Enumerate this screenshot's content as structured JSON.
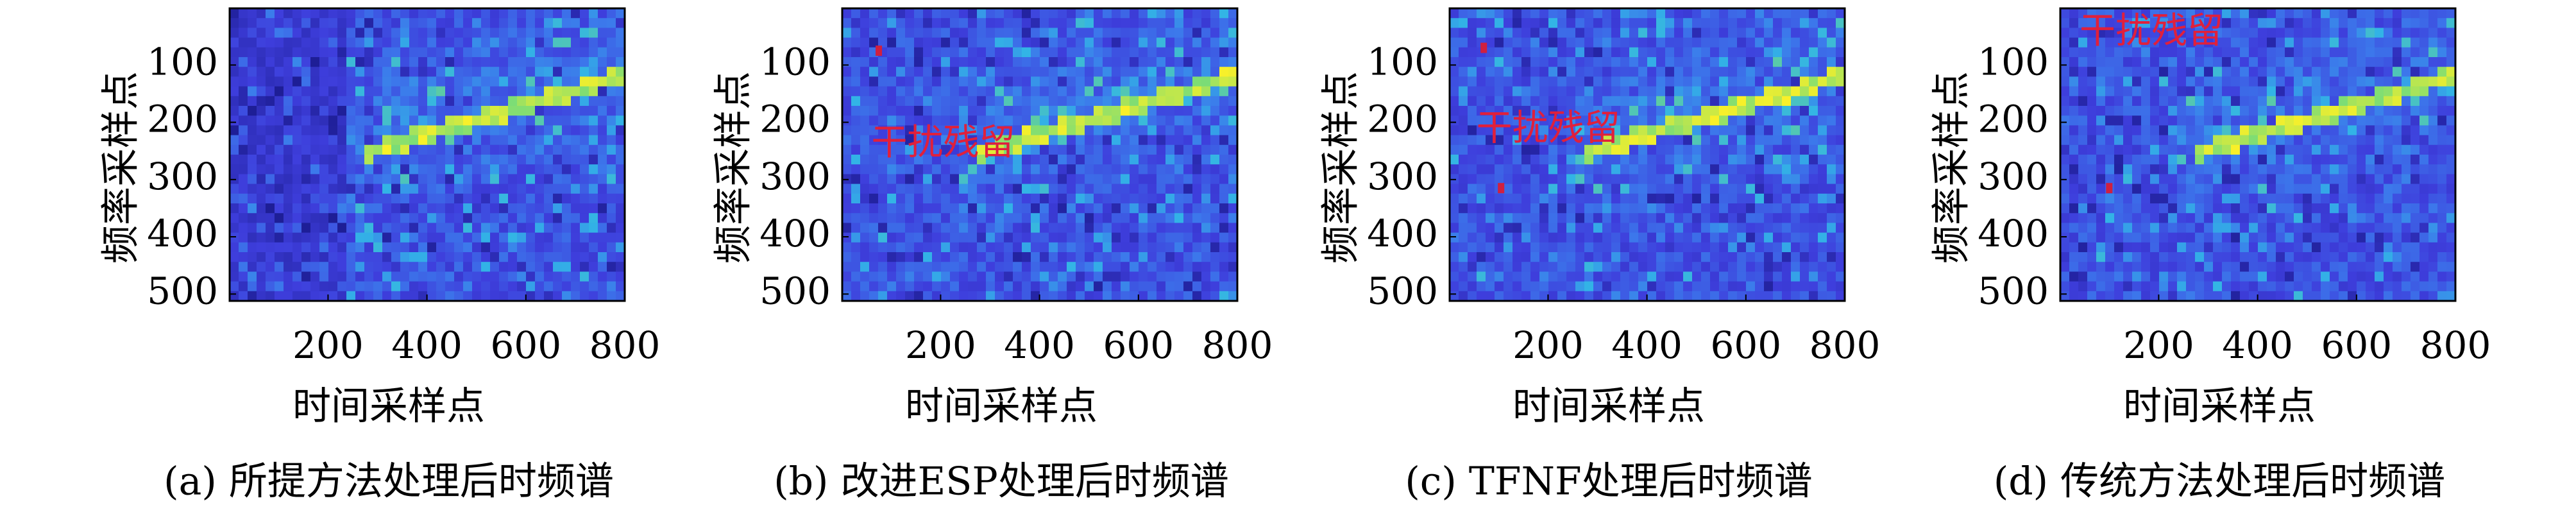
{
  "chart_data": [
    {
      "type": "heatmap",
      "caption": "(a) 所提方法处理后时频谱",
      "xlabel": "时间采样点",
      "ylabel": "频率采样点",
      "xlim": [
        1,
        800
      ],
      "ylim": [
        1,
        512
      ],
      "y_inverted": true,
      "xticks": [
        200,
        400,
        600,
        800
      ],
      "yticks": [
        100,
        200,
        300,
        400,
        500
      ]
    },
    {
      "type": "heatmap",
      "caption": "(b) 改进ESP处理后时频谱",
      "xlabel": "时间采样点",
      "ylabel": "频率采样点",
      "annotation": "干扰残留",
      "xlim": [
        1,
        800
      ],
      "ylim": [
        1,
        512
      ],
      "y_inverted": true,
      "xticks": [
        200,
        400,
        600,
        800
      ],
      "yticks": [
        100,
        200,
        300,
        400,
        500
      ]
    },
    {
      "type": "heatmap",
      "caption": "(c) TFNF处理后时频谱",
      "xlabel": "时间采样点",
      "ylabel": "频率采样点",
      "annotation": "干扰残留",
      "xlim": [
        1,
        800
      ],
      "ylim": [
        1,
        512
      ],
      "y_inverted": true,
      "xticks": [
        200,
        400,
        600,
        800
      ],
      "yticks": [
        100,
        200,
        300,
        400,
        500
      ]
    },
    {
      "type": "heatmap",
      "caption": "(d) 传统方法处理后时频谱",
      "xlabel": "时间采样点",
      "ylabel": "频率采样点",
      "annotation": "干扰残留",
      "xlim": [
        1,
        800
      ],
      "ylim": [
        1,
        512
      ],
      "y_inverted": true,
      "xticks": [
        200,
        400,
        600,
        800
      ],
      "yticks": [
        100,
        200,
        300,
        400,
        500
      ]
    }
  ]
}
